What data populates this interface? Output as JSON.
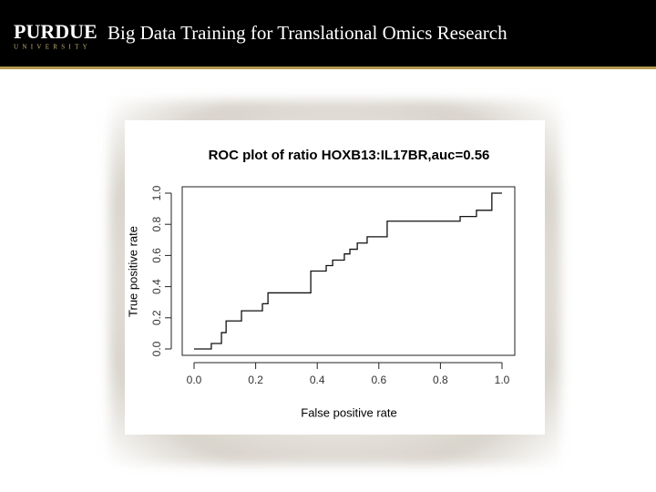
{
  "header": {
    "logo": "PURDUE",
    "logo_sub": "UNIVERSITY",
    "title": "Big Data Training for Translational Omics Research"
  },
  "chart_data": {
    "type": "line",
    "title": "ROC plot of ratio HOXB13:IL17BR,auc=0.56",
    "xlabel": "False positive rate",
    "ylabel": "True positive rate",
    "x": [
      0,
      0.056,
      0.056,
      0.089,
      0.089,
      0.104,
      0.104,
      0.154,
      0.154,
      0.222,
      0.222,
      0.24,
      0.24,
      0.379,
      0.379,
      0.429,
      0.429,
      0.45,
      0.45,
      0.488,
      0.488,
      0.506,
      0.506,
      0.53,
      0.53,
      0.562,
      0.562,
      0.627,
      0.627,
      0.864,
      0.864,
      0.917,
      0.917,
      0.967,
      0.967,
      1
    ],
    "values": [
      0,
      0,
      0.035,
      0.035,
      0.105,
      0.105,
      0.18,
      0.18,
      0.245,
      0.245,
      0.29,
      0.29,
      0.36,
      0.36,
      0.5,
      0.5,
      0.535,
      0.535,
      0.57,
      0.57,
      0.61,
      0.61,
      0.64,
      0.64,
      0.68,
      0.68,
      0.72,
      0.72,
      0.82,
      0.82,
      0.85,
      0.85,
      0.89,
      0.89,
      1.0,
      1.0
    ],
    "color": "#111111",
    "xlim": [
      0,
      1
    ],
    "ylim": [
      0,
      1
    ],
    "xticks": [
      {
        "value": 0,
        "label": "0.0"
      },
      0.2,
      0.4,
      0.6,
      0.8,
      {
        "value": 1,
        "label": "1.0"
      }
    ],
    "yticks": [
      {
        "value": 0,
        "label": "0.0"
      },
      0.2,
      0.4,
      0.6,
      0.8,
      {
        "value": 1,
        "label": "1.0"
      }
    ]
  }
}
